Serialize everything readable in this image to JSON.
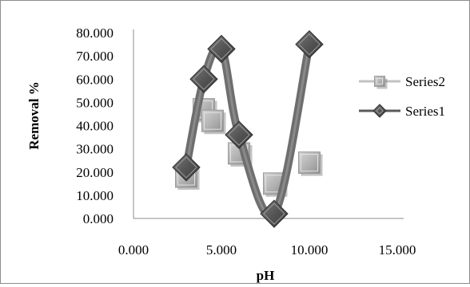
{
  "chart_data": {
    "type": "scatter",
    "xlabel": "pH",
    "ylabel": "Removal %",
    "xlim": [
      0,
      15
    ],
    "ylim": [
      0,
      80
    ],
    "x_ticks": [
      "0.000",
      "5.000",
      "10.000",
      "15.000"
    ],
    "y_ticks": [
      "0.000",
      "10.000",
      "20.000",
      "30.000",
      "40.000",
      "50.000",
      "60.000",
      "70.000",
      "80.000"
    ],
    "grid": false,
    "legend_position": "right",
    "series": [
      {
        "name": "Series1",
        "marker": "diamond",
        "line": "smooth",
        "color": "#5a5a5a",
        "points": [
          [
            3,
            22
          ],
          [
            4,
            60
          ],
          [
            5,
            73
          ],
          [
            6,
            36
          ],
          [
            8,
            2
          ],
          [
            10,
            75
          ]
        ]
      },
      {
        "name": "Series2",
        "marker": "square",
        "line": "none",
        "color": "#a6a6a6",
        "points": [
          [
            3,
            18
          ],
          [
            4,
            47
          ],
          [
            4.5,
            42
          ],
          [
            6,
            28
          ],
          [
            8,
            15
          ],
          [
            10,
            24
          ]
        ]
      }
    ]
  }
}
